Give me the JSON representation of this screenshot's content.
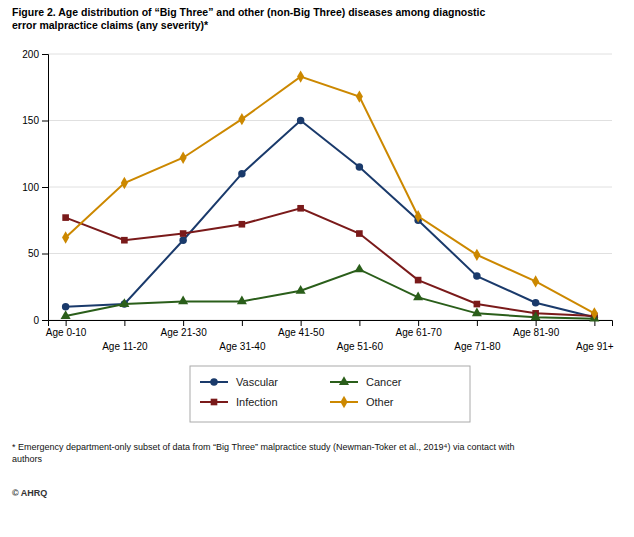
{
  "chart_data": {
    "type": "line",
    "title": "Figure 2. Age distribution of “Big Three” and other (non-Big Three) diseases among diagnostic\nerror malpractice claims (any severity)*",
    "categories": [
      "Age 0-10",
      "Age 11-20",
      "Age 21-30",
      "Age 31-40",
      "Age 41-50",
      "Age 51-60",
      "Age 61-70",
      "Age 71-80",
      "Age 81-90",
      "Age 91+"
    ],
    "series": [
      {
        "name": "Vascular",
        "color": "#1a3a6b",
        "marker": "circle",
        "values": [
          10,
          12,
          60,
          110,
          150,
          115,
          75,
          33,
          13,
          2
        ]
      },
      {
        "name": "Infection",
        "color": "#7a1a1a",
        "marker": "square",
        "values": [
          77,
          60,
          65,
          72,
          84,
          65,
          30,
          12,
          5,
          3
        ]
      },
      {
        "name": "Cancer",
        "color": "#2a5e1a",
        "marker": "triangle",
        "values": [
          3,
          12,
          14,
          14,
          22,
          38,
          17,
          5,
          2,
          1
        ]
      },
      {
        "name": "Other",
        "color": "#cc8800",
        "marker": "diamond",
        "values": [
          62,
          103,
          122,
          151,
          183,
          168,
          78,
          49,
          29,
          5
        ]
      }
    ],
    "ylim": [
      0,
      200
    ],
    "yticks": [
      0,
      50,
      100,
      150,
      200
    ],
    "grid": true,
    "legend": "bottom",
    "annotations": [
      "* Emergency department-only subset of data from “Big Three” malpractice study (Newman-Toker et al., 2019⁴) via contact with\nauthors",
      "© AHRQ"
    ]
  }
}
